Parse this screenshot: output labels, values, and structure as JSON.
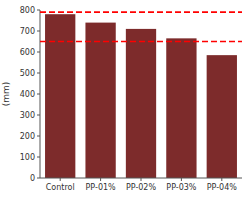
{
  "chart_data": {
    "type": "bar",
    "categories": [
      "Control",
      "PP-01%",
      "PP-02%",
      "PP-03%",
      "PP-04%"
    ],
    "values": [
      780,
      740,
      710,
      665,
      585
    ],
    "color": "#7d2b2b",
    "ylabel": "(mm)",
    "ylim": [
      0,
      800
    ],
    "yticks": [
      0,
      100,
      200,
      300,
      400,
      500,
      600,
      700,
      800
    ],
    "reference_lines": [
      {
        "value": 790,
        "color": "#ff0000",
        "line_style": "dashed"
      },
      {
        "value": 650,
        "color": "#ff0000",
        "line_style": "dashed"
      }
    ],
    "grid": false
  }
}
